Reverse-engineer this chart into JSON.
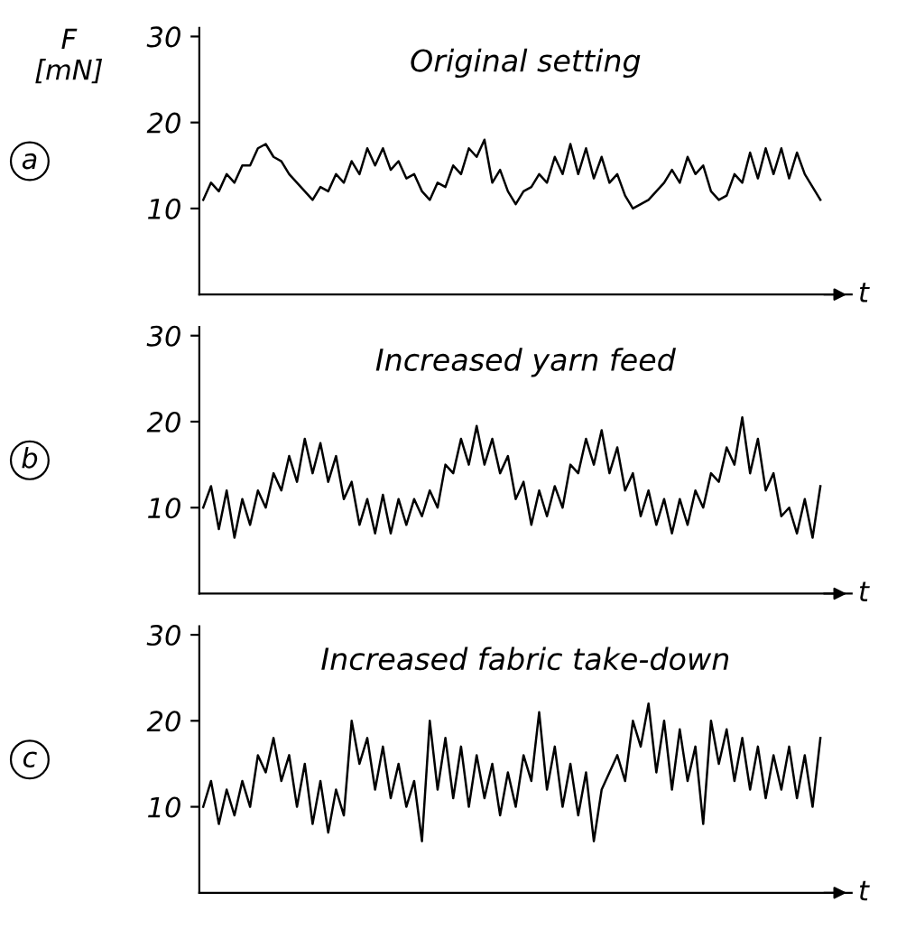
{
  "chart_data": [
    {
      "type": "line",
      "title": "Original setting",
      "ylabel": "F\n[mN]",
      "xlabel": "t",
      "annotations": [
        "a"
      ],
      "ylim": [
        0,
        31
      ],
      "yticks": [
        10,
        20,
        30
      ],
      "tick_labels": "y",
      "grid": false,
      "legend": false,
      "line_style": "solid",
      "marker": "none",
      "categories": [
        null,
        null,
        null,
        null,
        null,
        null,
        null,
        null,
        null,
        null,
        null,
        null,
        null,
        null,
        null,
        null,
        null,
        null,
        null,
        null,
        null,
        null,
        null,
        null,
        null,
        null,
        null,
        null,
        null,
        null,
        null,
        null,
        null,
        null,
        null,
        null,
        null,
        null,
        null,
        null,
        null,
        null,
        null,
        null,
        null,
        null,
        null,
        null,
        null,
        null,
        null,
        null,
        null,
        null,
        null,
        null,
        null,
        null,
        null,
        null,
        null,
        null,
        null,
        null,
        null,
        null,
        null,
        null,
        null,
        null,
        null,
        null,
        null,
        null,
        null,
        null,
        null,
        null,
        null,
        null
      ],
      "series": [
        {
          "color": "#000000",
          "values": [
            11,
            13,
            12,
            14,
            13,
            15,
            15,
            17,
            17.5,
            16,
            15.5,
            14,
            13,
            12,
            11,
            12.5,
            12,
            14,
            13,
            15.5,
            14,
            17,
            15,
            17,
            14.5,
            15.5,
            13.5,
            14,
            12,
            11,
            13,
            12.5,
            15,
            14,
            17,
            16,
            18,
            13,
            14.5,
            12,
            10.5,
            12,
            12.5,
            14,
            13,
            16,
            14,
            17.5,
            14,
            17,
            13.5,
            16,
            13,
            14,
            11.5,
            10,
            10.5,
            11,
            12,
            13,
            14.5,
            13,
            16,
            14,
            15,
            12,
            11,
            11.5,
            14,
            13,
            16.5,
            13.5,
            17,
            14,
            17,
            13.5,
            16.5,
            14,
            12.5,
            11
          ]
        }
      ]
    },
    {
      "type": "line",
      "title": "Increased yarn feed",
      "xlabel": "t",
      "annotations": [
        "b"
      ],
      "ylim": [
        0,
        31
      ],
      "yticks": [
        10,
        20,
        30
      ],
      "tick_labels": "y",
      "grid": false,
      "legend": false,
      "line_style": "solid",
      "marker": "none",
      "categories": [
        null,
        null,
        null,
        null,
        null,
        null,
        null,
        null,
        null,
        null,
        null,
        null,
        null,
        null,
        null,
        null,
        null,
        null,
        null,
        null,
        null,
        null,
        null,
        null,
        null,
        null,
        null,
        null,
        null,
        null,
        null,
        null,
        null,
        null,
        null,
        null,
        null,
        null,
        null,
        null,
        null,
        null,
        null,
        null,
        null,
        null,
        null,
        null,
        null,
        null,
        null,
        null,
        null,
        null,
        null,
        null,
        null,
        null,
        null,
        null,
        null,
        null,
        null,
        null,
        null,
        null,
        null,
        null,
        null,
        null,
        null,
        null,
        null,
        null,
        null,
        null,
        null,
        null,
        null,
        null
      ],
      "series": [
        {
          "color": "#000000",
          "values": [
            10,
            12.5,
            7.5,
            12,
            6.5,
            11,
            8,
            12,
            10,
            14,
            12,
            16,
            13,
            18,
            14,
            17.5,
            13,
            16,
            11,
            13,
            8,
            11,
            7,
            11.5,
            7,
            11,
            8,
            11,
            9,
            12,
            10,
            15,
            14,
            18,
            15,
            19.5,
            15,
            18,
            14,
            16,
            11,
            13,
            8,
            12,
            9,
            12.5,
            10,
            15,
            14,
            18,
            15,
            19,
            14,
            17,
            12,
            14,
            9,
            12,
            8,
            11,
            7,
            11,
            8,
            12,
            10,
            14,
            13,
            17,
            15,
            20.5,
            14,
            18,
            12,
            14,
            9,
            10,
            7,
            11,
            6.5,
            12.5
          ]
        }
      ]
    },
    {
      "type": "line",
      "title": "Increased fabric take-down",
      "xlabel": "t",
      "annotations": [
        "c"
      ],
      "ylim": [
        0,
        31
      ],
      "yticks": [
        10,
        20,
        30
      ],
      "tick_labels": "y",
      "grid": false,
      "legend": false,
      "line_style": "solid",
      "marker": "none",
      "categories": [
        null,
        null,
        null,
        null,
        null,
        null,
        null,
        null,
        null,
        null,
        null,
        null,
        null,
        null,
        null,
        null,
        null,
        null,
        null,
        null,
        null,
        null,
        null,
        null,
        null,
        null,
        null,
        null,
        null,
        null,
        null,
        null,
        null,
        null,
        null,
        null,
        null,
        null,
        null,
        null,
        null,
        null,
        null,
        null,
        null,
        null,
        null,
        null,
        null,
        null,
        null,
        null,
        null,
        null,
        null,
        null,
        null,
        null,
        null,
        null,
        null,
        null,
        null,
        null,
        null,
        null,
        null,
        null,
        null,
        null,
        null,
        null,
        null,
        null,
        null,
        null,
        null,
        null,
        null,
        null
      ],
      "series": [
        {
          "color": "#000000",
          "values": [
            10,
            13,
            8,
            12,
            9,
            13,
            10,
            16,
            14,
            18,
            13,
            16,
            10,
            15,
            8,
            13,
            7,
            12,
            9,
            20,
            15,
            18,
            12,
            17,
            11,
            15,
            10,
            13,
            6,
            20,
            12,
            18,
            11,
            17,
            10,
            16,
            11,
            15,
            9,
            14,
            10,
            16,
            13,
            21,
            12,
            17,
            10,
            15,
            9,
            14,
            6,
            12,
            14,
            16,
            13,
            20,
            17,
            22,
            14,
            20,
            12,
            19,
            13,
            17,
            8,
            20,
            15,
            19,
            13,
            18,
            12,
            17,
            11,
            16,
            12,
            17,
            11,
            16,
            10,
            18
          ]
        }
      ]
    }
  ]
}
